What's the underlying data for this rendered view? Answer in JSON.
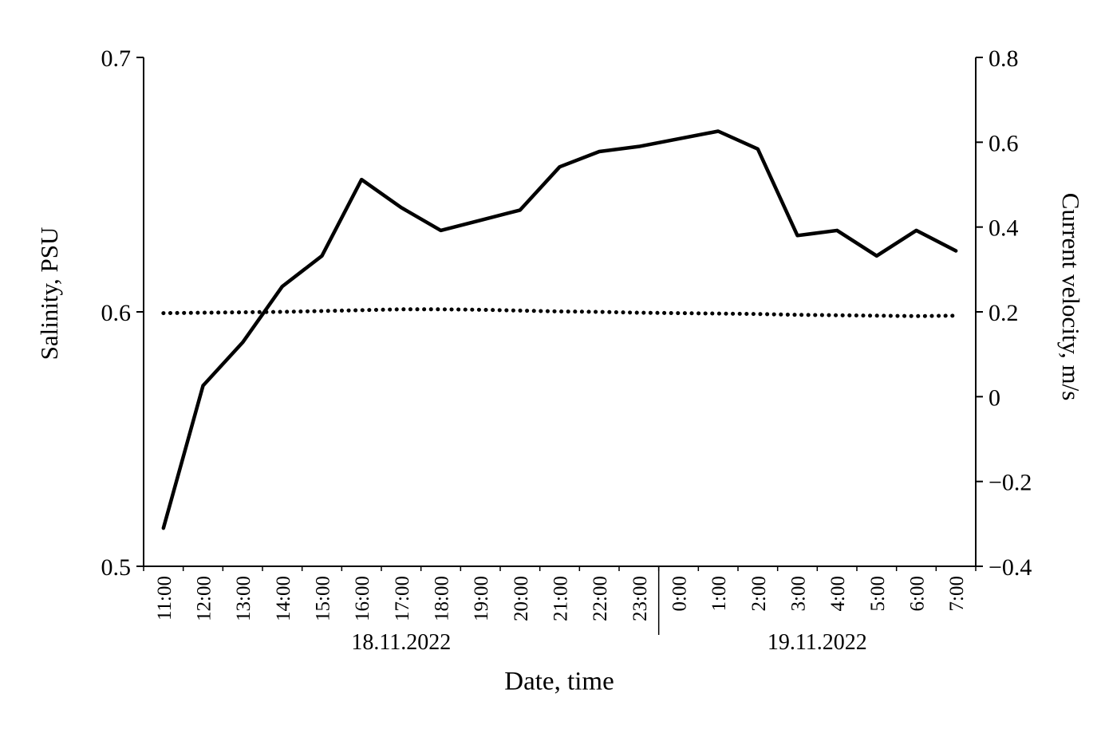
{
  "chart_data": {
    "type": "line",
    "title": "",
    "xlabel": "Date, time",
    "ylabel_left": "Salinity, PSU",
    "ylabel_right": "Current velocity, m/s",
    "grid": false,
    "legend": "none",
    "categories": [
      "11:00",
      "12:00",
      "13:00",
      "14:00",
      "15:00",
      "16:00",
      "17:00",
      "18:00",
      "19:00",
      "20:00",
      "21:00",
      "22:00",
      "23:00",
      "0:00",
      "1:00",
      "2:00",
      "3:00",
      "4:00",
      "5:00",
      "6:00",
      "7:00"
    ],
    "date_groups": [
      {
        "label": "18.11.2022",
        "start": 0,
        "end": 12
      },
      {
        "label": "19.11.2022",
        "start": 13,
        "end": 20
      }
    ],
    "left_axis": {
      "min": 0.5,
      "max": 0.7,
      "ticks": [
        0.7,
        0.6,
        0.5
      ],
      "tick_labels": [
        "0.7",
        "0.6",
        "0.5"
      ]
    },
    "right_axis": {
      "min": -0.4,
      "max": 0.8,
      "ticks": [
        0.8,
        0.6,
        0.4,
        0.2,
        0,
        -0.2,
        -0.4
      ],
      "tick_labels": [
        "0.8",
        "0.6",
        "0.4",
        "0.2",
        "0",
        "−0.2",
        "−0.4"
      ]
    },
    "series": [
      {
        "name": "Salinity",
        "axis": "left",
        "style": "solid",
        "values": [
          0.515,
          0.571,
          0.588,
          0.61,
          0.622,
          0.652,
          0.641,
          0.632,
          0.636,
          0.64,
          0.657,
          0.663,
          0.665,
          0.668,
          0.671,
          0.664,
          0.63,
          0.632,
          0.622,
          0.632,
          0.624
        ]
      },
      {
        "name": "Current velocity",
        "axis": "right",
        "style": "dotted",
        "values": [
          0.197,
          0.198,
          0.199,
          0.2,
          0.202,
          0.204,
          0.206,
          0.206,
          0.205,
          0.203,
          0.201,
          0.2,
          0.198,
          0.197,
          0.196,
          0.195,
          0.193,
          0.192,
          0.191,
          0.19,
          0.191
        ]
      }
    ],
    "colors": {
      "line": "#000000",
      "background": "#ffffff"
    }
  }
}
